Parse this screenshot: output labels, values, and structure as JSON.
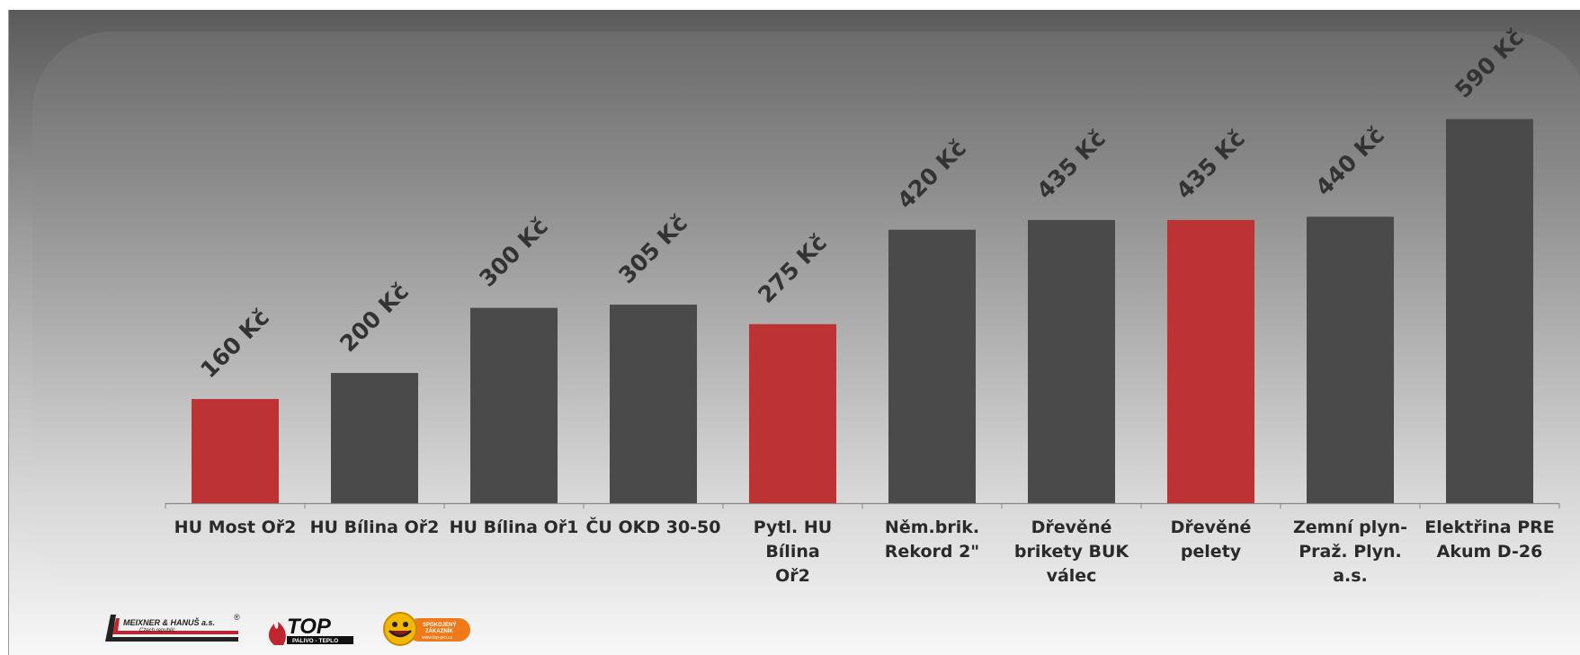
{
  "chart_data": {
    "type": "bar",
    "categories": [
      "HU Most Oř2",
      "HU Bílina Oř2",
      "HU Bílina Oř1",
      "ČU OKD 30-50",
      "Pytl. HU Bílina Oř2",
      "Něm.brik. Rekord 2\"",
      "Dřevěné brikety BUK válec",
      "Dřevěné pelety",
      "Zemní plyn- Praž. Plyn. a.s.",
      "Elektřina PRE Akum D-26"
    ],
    "category_lines": [
      [
        "HU Most Oř2"
      ],
      [
        "HU Bílina Oř2"
      ],
      [
        "HU Bílina Oř1"
      ],
      [
        "ČU OKD 30-50"
      ],
      [
        "Pytl. HU Bílina",
        "Oř2"
      ],
      [
        "Něm.brik.",
        "Rekord 2\""
      ],
      [
        "Dřevěné",
        "brikety BUK",
        "válec"
      ],
      [
        "Dřevěné",
        "pelety"
      ],
      [
        "Zemní plyn-",
        "Praž. Plyn.",
        "a.s."
      ],
      [
        "Elektřina PRE",
        "Akum D-26"
      ]
    ],
    "values": [
      160,
      200,
      300,
      305,
      275,
      420,
      435,
      435,
      440,
      590
    ],
    "data_labels": [
      "160 Kč",
      "200 Kč",
      "300 Kč",
      "305 Kč",
      "275 Kč",
      "420 Kč",
      "435 Kč",
      "435 Kč",
      "440 Kč",
      "590 Kč"
    ],
    "highlighted": [
      true,
      false,
      false,
      false,
      true,
      false,
      false,
      true,
      false,
      false
    ],
    "colors": {
      "highlight": "#bd3232",
      "default": "#4a4a4a",
      "axis": "#888888",
      "label": "#2a2a2a",
      "data_label": "#333333"
    },
    "title": "",
    "xlabel": "",
    "ylabel": "",
    "ylim": [
      0,
      600
    ],
    "grid": false,
    "legend": "none"
  },
  "logos": {
    "meixner": {
      "text": "MEIXNER & HANUŠ a.s.",
      "sub": "Czech republic",
      "mark": "®"
    },
    "top": {
      "text": "TOP",
      "sub": "PALIVO - TEPLO"
    },
    "spokojeny": {
      "text1": "SPOKOJENÝ",
      "text2": "ZÁKAZNÍK",
      "url": "www.top-pro.cz"
    }
  }
}
